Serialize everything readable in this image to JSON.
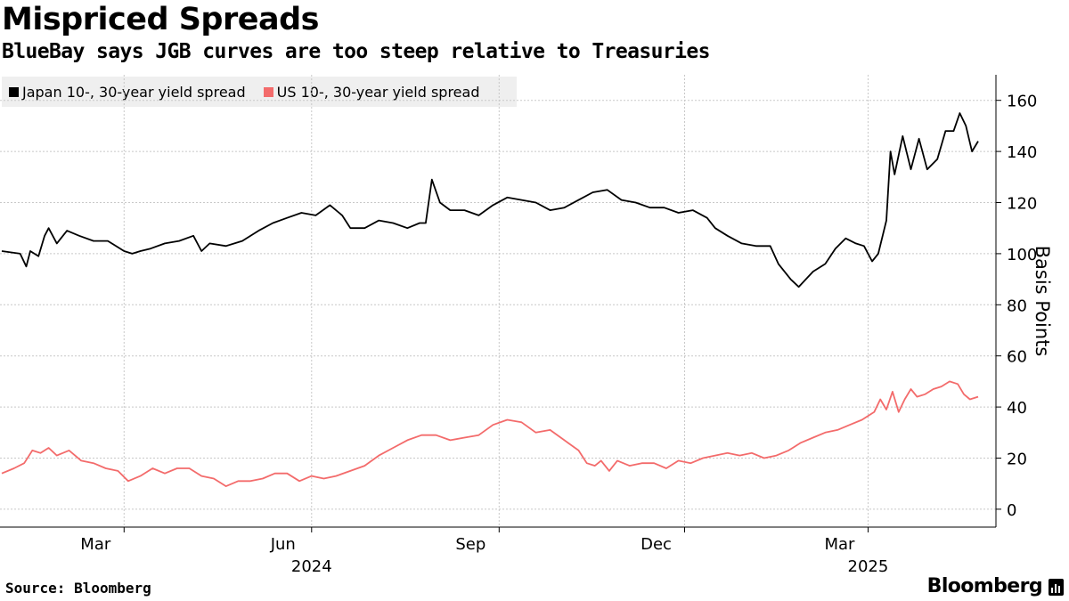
{
  "title": "Mispriced Spreads",
  "subtitle": "BlueBay says JGB curves are too steep relative to Treasuries",
  "source": "Source: Bloomberg",
  "brand": "Bloomberg",
  "colors": {
    "japan": "#000000",
    "us": "#f36b6b",
    "grid": "#c8c8c8",
    "legend_bg": "#efefef"
  },
  "chart_data": {
    "type": "line",
    "ylabel": "Basis Points",
    "ylim": [
      -7,
      170
    ],
    "yticks": [
      0,
      20,
      40,
      60,
      80,
      100,
      120,
      140,
      160
    ],
    "x_start": "2024-01-01",
    "x_end": "2025-04-24",
    "x_ticks": [
      {
        "date": "2024-03-01",
        "label": "Mar",
        "year": ""
      },
      {
        "date": "2024-06-01",
        "label": "Jun",
        "year": "2024"
      },
      {
        "date": "2024-09-01",
        "label": "Sep",
        "year": ""
      },
      {
        "date": "2024-12-01",
        "label": "Dec",
        "year": ""
      },
      {
        "date": "2025-03-01",
        "label": "Mar",
        "year": "2025"
      }
    ],
    "legend": [
      "Japan 10-, 30-year yield spread",
      "US 10-, 30-year yield spread"
    ],
    "series": [
      {
        "name": "Japan 10-, 30-year yield spread",
        "points": [
          [
            "2024-01-01",
            101
          ],
          [
            "2024-01-10",
            100
          ],
          [
            "2024-01-13",
            95
          ],
          [
            "2024-01-15",
            101
          ],
          [
            "2024-01-19",
            99
          ],
          [
            "2024-01-22",
            107
          ],
          [
            "2024-01-24",
            110
          ],
          [
            "2024-01-28",
            104
          ],
          [
            "2024-02-02",
            109
          ],
          [
            "2024-02-08",
            107
          ],
          [
            "2024-02-15",
            105
          ],
          [
            "2024-02-22",
            105
          ],
          [
            "2024-03-01",
            101
          ],
          [
            "2024-03-05",
            100
          ],
          [
            "2024-03-09",
            101
          ],
          [
            "2024-03-14",
            102
          ],
          [
            "2024-03-21",
            104
          ],
          [
            "2024-03-28",
            105
          ],
          [
            "2024-04-04",
            107
          ],
          [
            "2024-04-08",
            101
          ],
          [
            "2024-04-12",
            104
          ],
          [
            "2024-04-20",
            103
          ],
          [
            "2024-04-28",
            105
          ],
          [
            "2024-05-06",
            109
          ],
          [
            "2024-05-13",
            112
          ],
          [
            "2024-05-20",
            114
          ],
          [
            "2024-05-27",
            116
          ],
          [
            "2024-06-03",
            115
          ],
          [
            "2024-06-10",
            119
          ],
          [
            "2024-06-16",
            115
          ],
          [
            "2024-06-20",
            110
          ],
          [
            "2024-06-27",
            110
          ],
          [
            "2024-07-04",
            113
          ],
          [
            "2024-07-11",
            112
          ],
          [
            "2024-07-18",
            110
          ],
          [
            "2024-07-24",
            112
          ],
          [
            "2024-07-27",
            112
          ],
          [
            "2024-07-30",
            129
          ],
          [
            "2024-08-03",
            120
          ],
          [
            "2024-08-08",
            117
          ],
          [
            "2024-08-15",
            117
          ],
          [
            "2024-08-22",
            115
          ],
          [
            "2024-08-29",
            119
          ],
          [
            "2024-09-05",
            122
          ],
          [
            "2024-09-12",
            121
          ],
          [
            "2024-09-19",
            120
          ],
          [
            "2024-09-26",
            117
          ],
          [
            "2024-10-03",
            118
          ],
          [
            "2024-10-10",
            121
          ],
          [
            "2024-10-17",
            124
          ],
          [
            "2024-10-24",
            125
          ],
          [
            "2024-10-31",
            121
          ],
          [
            "2024-11-07",
            120
          ],
          [
            "2024-11-14",
            118
          ],
          [
            "2024-11-21",
            118
          ],
          [
            "2024-11-28",
            116
          ],
          [
            "2024-12-05",
            117
          ],
          [
            "2024-12-12",
            114
          ],
          [
            "2024-12-16",
            110
          ],
          [
            "2024-12-22",
            107
          ],
          [
            "2024-12-29",
            104
          ],
          [
            "2025-01-05",
            103
          ],
          [
            "2025-01-12",
            103
          ],
          [
            "2025-01-16",
            96
          ],
          [
            "2025-01-22",
            90
          ],
          [
            "2025-01-26",
            87
          ],
          [
            "2025-02-02",
            93
          ],
          [
            "2025-02-08",
            96
          ],
          [
            "2025-02-13",
            102
          ],
          [
            "2025-02-18",
            106
          ],
          [
            "2025-02-23",
            104
          ],
          [
            "2025-02-27",
            103
          ],
          [
            "2025-03-03",
            97
          ],
          [
            "2025-03-06",
            100
          ],
          [
            "2025-03-10",
            113
          ],
          [
            "2025-03-12",
            140
          ],
          [
            "2025-03-14",
            131
          ],
          [
            "2025-03-18",
            146
          ],
          [
            "2025-03-22",
            133
          ],
          [
            "2025-03-26",
            145
          ],
          [
            "2025-03-30",
            133
          ],
          [
            "2025-04-04",
            137
          ],
          [
            "2025-04-08",
            148
          ],
          [
            "2025-04-12",
            148
          ],
          [
            "2025-04-15",
            155
          ],
          [
            "2025-04-18",
            150
          ],
          [
            "2025-04-21",
            140
          ],
          [
            "2025-04-24",
            144
          ]
        ]
      },
      {
        "name": "US 10-, 30-year yield spread",
        "points": [
          [
            "2024-01-01",
            14
          ],
          [
            "2024-01-07",
            16
          ],
          [
            "2024-01-12",
            18
          ],
          [
            "2024-01-16",
            23
          ],
          [
            "2024-01-20",
            22
          ],
          [
            "2024-01-24",
            24
          ],
          [
            "2024-01-28",
            21
          ],
          [
            "2024-02-03",
            23
          ],
          [
            "2024-02-09",
            19
          ],
          [
            "2024-02-15",
            18
          ],
          [
            "2024-02-21",
            16
          ],
          [
            "2024-02-27",
            15
          ],
          [
            "2024-03-03",
            11
          ],
          [
            "2024-03-09",
            13
          ],
          [
            "2024-03-15",
            16
          ],
          [
            "2024-03-21",
            14
          ],
          [
            "2024-03-27",
            16
          ],
          [
            "2024-04-02",
            16
          ],
          [
            "2024-04-08",
            13
          ],
          [
            "2024-04-14",
            12
          ],
          [
            "2024-04-20",
            9
          ],
          [
            "2024-04-26",
            11
          ],
          [
            "2024-05-02",
            11
          ],
          [
            "2024-05-08",
            12
          ],
          [
            "2024-05-14",
            14
          ],
          [
            "2024-05-20",
            14
          ],
          [
            "2024-05-26",
            11
          ],
          [
            "2024-06-01",
            13
          ],
          [
            "2024-06-07",
            12
          ],
          [
            "2024-06-13",
            13
          ],
          [
            "2024-06-20",
            15
          ],
          [
            "2024-06-27",
            17
          ],
          [
            "2024-07-04",
            21
          ],
          [
            "2024-07-11",
            24
          ],
          [
            "2024-07-18",
            27
          ],
          [
            "2024-07-25",
            29
          ],
          [
            "2024-08-01",
            29
          ],
          [
            "2024-08-08",
            27
          ],
          [
            "2024-08-15",
            28
          ],
          [
            "2024-08-22",
            29
          ],
          [
            "2024-08-29",
            33
          ],
          [
            "2024-09-05",
            35
          ],
          [
            "2024-09-12",
            34
          ],
          [
            "2024-09-19",
            30
          ],
          [
            "2024-09-26",
            31
          ],
          [
            "2024-10-03",
            27
          ],
          [
            "2024-10-10",
            23
          ],
          [
            "2024-10-14",
            18
          ],
          [
            "2024-10-18",
            17
          ],
          [
            "2024-10-21",
            19
          ],
          [
            "2024-10-25",
            15
          ],
          [
            "2024-10-29",
            19
          ],
          [
            "2024-11-04",
            17
          ],
          [
            "2024-11-10",
            18
          ],
          [
            "2024-11-16",
            18
          ],
          [
            "2024-11-22",
            16
          ],
          [
            "2024-11-28",
            19
          ],
          [
            "2024-12-04",
            18
          ],
          [
            "2024-12-10",
            20
          ],
          [
            "2024-12-16",
            21
          ],
          [
            "2024-12-22",
            22
          ],
          [
            "2024-12-28",
            21
          ],
          [
            "2025-01-03",
            22
          ],
          [
            "2025-01-09",
            20
          ],
          [
            "2025-01-15",
            21
          ],
          [
            "2025-01-21",
            23
          ],
          [
            "2025-01-27",
            26
          ],
          [
            "2025-02-02",
            28
          ],
          [
            "2025-02-08",
            30
          ],
          [
            "2025-02-14",
            31
          ],
          [
            "2025-02-20",
            33
          ],
          [
            "2025-02-26",
            35
          ],
          [
            "2025-03-04",
            38
          ],
          [
            "2025-03-07",
            43
          ],
          [
            "2025-03-10",
            39
          ],
          [
            "2025-03-13",
            46
          ],
          [
            "2025-03-16",
            38
          ],
          [
            "2025-03-19",
            43
          ],
          [
            "2025-03-22",
            47
          ],
          [
            "2025-03-25",
            44
          ],
          [
            "2025-03-29",
            45
          ],
          [
            "2025-04-02",
            47
          ],
          [
            "2025-04-06",
            48
          ],
          [
            "2025-04-10",
            50
          ],
          [
            "2025-04-14",
            49
          ],
          [
            "2025-04-17",
            45
          ],
          [
            "2025-04-20",
            43
          ],
          [
            "2025-04-24",
            44
          ]
        ]
      }
    ]
  }
}
